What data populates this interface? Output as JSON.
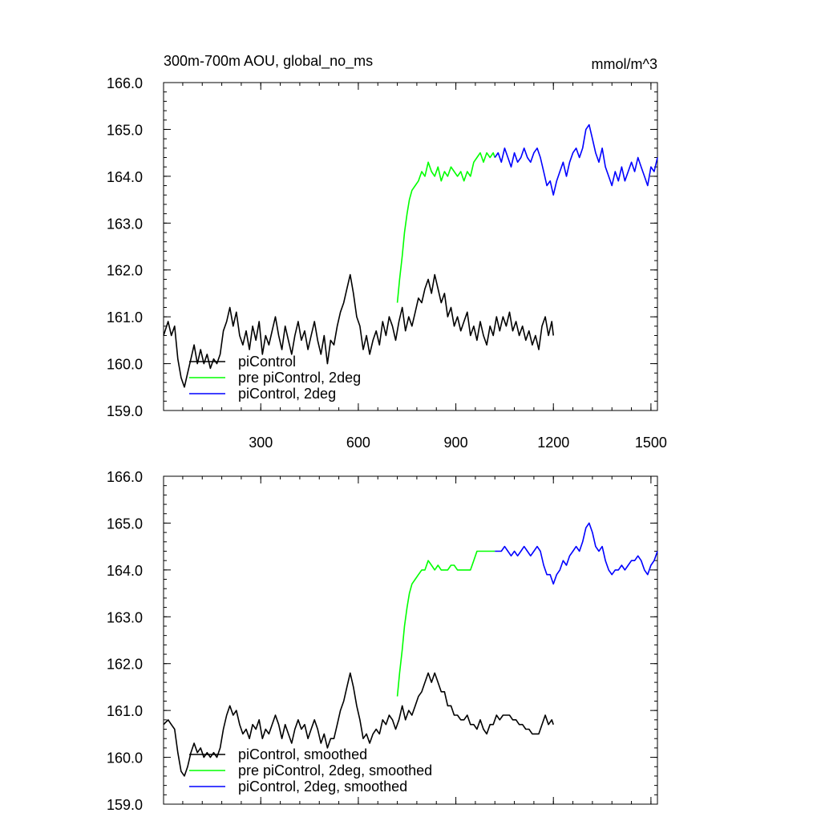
{
  "figure": {
    "title": "300m-700m AOU, global_no_ms",
    "units": "mmol/m^3"
  },
  "colors": {
    "piControl": "#000000",
    "pre_piControl_2deg": "#00ff00",
    "piControl_2deg": "#0000ff"
  },
  "chart_data": [
    {
      "type": "line",
      "title": "300m-700m AOU, global_no_ms",
      "units": "mmol/m^3",
      "xlim": [
        1,
        1520
      ],
      "ylim": [
        159.0,
        166.0
      ],
      "xticks": [
        300,
        600,
        900,
        1200,
        1500
      ],
      "xtick_labels": [
        "300",
        "600",
        "900",
        "1200",
        "1500"
      ],
      "yticks": [
        159,
        160,
        161,
        162,
        163,
        164,
        165,
        166
      ],
      "ytick_labels": [
        "159.0",
        "160.0",
        "161.0",
        "162.0",
        "163.0",
        "164.0",
        "165.0",
        "166.0"
      ],
      "legend": {
        "placement": "bottom-left",
        "entries": [
          "piControl",
          "pre piControl, 2deg",
          "piControl, 2deg"
        ]
      },
      "series": [
        {
          "name": "piControl",
          "color": "#000000",
          "x": [
            1,
            15,
            25,
            35,
            45,
            55,
            65,
            75,
            85,
            95,
            105,
            115,
            125,
            135,
            145,
            155,
            165,
            175,
            185,
            195,
            205,
            215,
            225,
            235,
            245,
            255,
            265,
            275,
            285,
            295,
            305,
            315,
            325,
            335,
            345,
            355,
            365,
            375,
            385,
            395,
            405,
            415,
            425,
            435,
            445,
            455,
            465,
            475,
            485,
            495,
            505,
            515,
            525,
            535,
            545,
            555,
            565,
            575,
            585,
            595,
            605,
            615,
            625,
            635,
            645,
            655,
            665,
            675,
            685,
            695,
            705,
            715,
            725,
            735,
            745,
            755,
            765,
            775,
            785,
            795,
            805,
            815,
            825,
            835,
            845,
            855,
            865,
            875,
            885,
            895,
            905,
            915,
            925,
            935,
            945,
            955,
            965,
            975,
            985,
            995,
            1005,
            1015,
            1025,
            1035,
            1045,
            1055,
            1065,
            1075,
            1085,
            1095,
            1105,
            1115,
            1125,
            1135,
            1145,
            1155,
            1165,
            1175,
            1185,
            1195,
            1200
          ],
          "y": [
            160.6,
            160.9,
            160.6,
            160.8,
            160.1,
            159.7,
            159.5,
            159.8,
            160.1,
            160.4,
            160.0,
            160.3,
            160.0,
            160.2,
            159.9,
            160.1,
            160.0,
            160.2,
            160.7,
            160.9,
            161.2,
            160.8,
            161.1,
            160.6,
            160.4,
            160.7,
            160.3,
            160.8,
            160.5,
            160.9,
            160.2,
            160.6,
            160.4,
            160.7,
            161.0,
            160.6,
            160.3,
            160.8,
            160.5,
            160.2,
            160.6,
            160.9,
            160.5,
            160.7,
            160.3,
            160.6,
            160.9,
            160.5,
            160.2,
            160.6,
            160.0,
            160.5,
            160.4,
            160.8,
            161.1,
            161.3,
            161.6,
            161.9,
            161.5,
            161.0,
            160.8,
            160.3,
            160.6,
            160.2,
            160.5,
            160.7,
            160.4,
            160.9,
            160.6,
            161.0,
            160.8,
            160.5,
            160.9,
            161.2,
            160.7,
            161.0,
            160.8,
            161.1,
            161.4,
            161.3,
            161.6,
            161.8,
            161.5,
            161.9,
            161.6,
            161.3,
            161.5,
            161.0,
            161.2,
            160.8,
            161.0,
            160.7,
            160.9,
            161.1,
            160.6,
            160.8,
            160.5,
            160.9,
            160.6,
            160.4,
            160.8,
            160.6,
            161.0,
            160.7,
            161.0,
            160.8,
            161.1,
            160.7,
            160.9,
            160.6,
            160.8,
            160.5,
            160.7,
            160.4,
            160.6,
            160.3,
            160.8,
            161.0,
            160.6,
            160.9,
            160.6
          ]
        },
        {
          "name": "pre piControl, 2deg",
          "color": "#00ff00",
          "x": [
            720,
            727,
            735,
            742,
            750,
            757,
            765,
            775,
            785,
            795,
            805,
            815,
            825,
            835,
            845,
            855,
            865,
            875,
            885,
            895,
            905,
            915,
            925,
            935,
            945,
            955,
            965,
            975,
            985,
            995,
            1005,
            1015,
            1020
          ],
          "y": [
            161.3,
            161.8,
            162.3,
            162.8,
            163.2,
            163.5,
            163.7,
            163.8,
            163.9,
            164.1,
            164.0,
            164.3,
            164.1,
            164.0,
            164.2,
            163.9,
            164.1,
            164.0,
            164.2,
            164.1,
            164.0,
            164.1,
            163.9,
            164.1,
            164.0,
            164.3,
            164.4,
            164.5,
            164.3,
            164.5,
            164.4,
            164.5,
            164.4
          ]
        },
        {
          "name": "piControl, 2deg",
          "color": "#0000ff",
          "x": [
            1020,
            1030,
            1040,
            1050,
            1060,
            1070,
            1080,
            1090,
            1100,
            1110,
            1120,
            1130,
            1140,
            1150,
            1160,
            1170,
            1180,
            1190,
            1200,
            1210,
            1220,
            1230,
            1240,
            1250,
            1260,
            1270,
            1280,
            1290,
            1300,
            1310,
            1320,
            1330,
            1340,
            1350,
            1360,
            1370,
            1380,
            1390,
            1400,
            1410,
            1420,
            1430,
            1440,
            1450,
            1460,
            1470,
            1480,
            1490,
            1500,
            1510,
            1520
          ],
          "y": [
            164.4,
            164.5,
            164.3,
            164.6,
            164.4,
            164.2,
            164.5,
            164.3,
            164.4,
            164.6,
            164.4,
            164.3,
            164.5,
            164.6,
            164.4,
            164.1,
            163.8,
            163.9,
            163.6,
            163.9,
            164.1,
            164.3,
            164.0,
            164.3,
            164.5,
            164.6,
            164.4,
            164.6,
            165.0,
            165.1,
            164.8,
            164.5,
            164.3,
            164.6,
            164.2,
            164.0,
            163.8,
            164.1,
            163.9,
            164.2,
            163.9,
            164.1,
            164.3,
            164.1,
            164.4,
            164.2,
            164.0,
            163.8,
            164.2,
            164.1,
            164.4
          ]
        }
      ]
    },
    {
      "type": "line",
      "title": "",
      "xlim": [
        1,
        1520
      ],
      "ylim": [
        159.0,
        166.0
      ],
      "xticks": [
        300,
        600,
        900,
        1200,
        1500
      ],
      "xtick_labels": [],
      "yticks": [
        159,
        160,
        161,
        162,
        163,
        164,
        165,
        166
      ],
      "ytick_labels": [
        "159.0",
        "160.0",
        "161.0",
        "162.0",
        "163.0",
        "164.0",
        "165.0",
        "166.0"
      ],
      "legend": {
        "placement": "bottom-left",
        "entries": [
          "piControl, smoothed",
          "pre piControl, 2deg, smoothed",
          "piControl, 2deg, smoothed"
        ]
      },
      "series": [
        {
          "name": "piControl, smoothed",
          "color": "#000000",
          "x": [
            1,
            15,
            25,
            35,
            45,
            55,
            65,
            75,
            85,
            95,
            105,
            115,
            125,
            135,
            145,
            155,
            165,
            175,
            185,
            195,
            205,
            215,
            225,
            235,
            245,
            255,
            265,
            275,
            285,
            295,
            305,
            315,
            325,
            335,
            345,
            355,
            365,
            375,
            385,
            395,
            405,
            415,
            425,
            435,
            445,
            455,
            465,
            475,
            485,
            495,
            505,
            515,
            525,
            535,
            545,
            555,
            565,
            575,
            585,
            595,
            605,
            615,
            625,
            635,
            645,
            655,
            665,
            675,
            685,
            695,
            705,
            715,
            725,
            735,
            745,
            755,
            765,
            775,
            785,
            795,
            805,
            815,
            825,
            835,
            845,
            855,
            865,
            875,
            885,
            895,
            905,
            915,
            925,
            935,
            945,
            955,
            965,
            975,
            985,
            995,
            1005,
            1015,
            1025,
            1035,
            1045,
            1055,
            1065,
            1075,
            1085,
            1095,
            1105,
            1115,
            1125,
            1135,
            1145,
            1155,
            1165,
            1175,
            1185,
            1195,
            1200
          ],
          "y": [
            160.7,
            160.8,
            160.7,
            160.6,
            160.1,
            159.7,
            159.6,
            159.8,
            160.1,
            160.3,
            160.1,
            160.2,
            160.0,
            160.1,
            160.0,
            160.1,
            160.0,
            160.2,
            160.6,
            160.9,
            161.1,
            160.9,
            161.0,
            160.7,
            160.5,
            160.6,
            160.4,
            160.7,
            160.6,
            160.8,
            160.4,
            160.6,
            160.5,
            160.7,
            160.9,
            160.7,
            160.4,
            160.7,
            160.5,
            160.3,
            160.6,
            160.8,
            160.6,
            160.7,
            160.4,
            160.6,
            160.8,
            160.6,
            160.3,
            160.5,
            160.2,
            160.4,
            160.4,
            160.7,
            161.0,
            161.2,
            161.5,
            161.8,
            161.5,
            161.1,
            160.8,
            160.4,
            160.5,
            160.3,
            160.5,
            160.6,
            160.5,
            160.8,
            160.7,
            160.9,
            160.8,
            160.6,
            160.8,
            161.1,
            160.8,
            161.0,
            160.9,
            161.1,
            161.3,
            161.4,
            161.6,
            161.8,
            161.6,
            161.8,
            161.6,
            161.4,
            161.4,
            161.1,
            161.1,
            160.9,
            160.9,
            160.8,
            160.8,
            160.9,
            160.7,
            160.7,
            160.6,
            160.8,
            160.6,
            160.5,
            160.7,
            160.7,
            160.9,
            160.8,
            160.9,
            160.9,
            160.9,
            160.8,
            160.8,
            160.7,
            160.7,
            160.6,
            160.6,
            160.5,
            160.5,
            160.5,
            160.7,
            160.9,
            160.7,
            160.8,
            160.7
          ]
        },
        {
          "name": "pre piControl, 2deg, smoothed",
          "color": "#00ff00",
          "x": [
            720,
            727,
            735,
            742,
            750,
            757,
            765,
            775,
            785,
            795,
            805,
            815,
            825,
            835,
            845,
            855,
            865,
            875,
            885,
            895,
            905,
            915,
            925,
            935,
            945,
            955,
            965,
            975,
            985,
            995,
            1005,
            1015,
            1020
          ],
          "y": [
            161.3,
            161.8,
            162.3,
            162.8,
            163.2,
            163.5,
            163.7,
            163.8,
            163.9,
            164.0,
            164.0,
            164.2,
            164.1,
            164.0,
            164.1,
            164.0,
            164.0,
            164.0,
            164.1,
            164.1,
            164.0,
            164.0,
            164.0,
            164.0,
            164.0,
            164.2,
            164.4,
            164.4,
            164.4,
            164.4,
            164.4,
            164.4,
            164.4
          ]
        },
        {
          "name": "piControl, 2deg, smoothed",
          "color": "#0000ff",
          "x": [
            1020,
            1030,
            1040,
            1050,
            1060,
            1070,
            1080,
            1090,
            1100,
            1110,
            1120,
            1130,
            1140,
            1150,
            1160,
            1170,
            1180,
            1190,
            1200,
            1210,
            1220,
            1230,
            1240,
            1250,
            1260,
            1270,
            1280,
            1290,
            1300,
            1310,
            1320,
            1330,
            1340,
            1350,
            1360,
            1370,
            1380,
            1390,
            1400,
            1410,
            1420,
            1430,
            1440,
            1450,
            1460,
            1470,
            1480,
            1490,
            1500,
            1510,
            1520
          ],
          "y": [
            164.4,
            164.4,
            164.4,
            164.5,
            164.4,
            164.3,
            164.4,
            164.3,
            164.4,
            164.5,
            164.4,
            164.3,
            164.4,
            164.5,
            164.4,
            164.1,
            163.9,
            163.9,
            163.7,
            163.9,
            164.0,
            164.2,
            164.1,
            164.3,
            164.4,
            164.5,
            164.4,
            164.6,
            164.9,
            165.0,
            164.8,
            164.5,
            164.4,
            164.5,
            164.2,
            164.0,
            163.9,
            164.0,
            164.0,
            164.1,
            164.0,
            164.1,
            164.2,
            164.2,
            164.3,
            164.2,
            164.0,
            163.9,
            164.1,
            164.2,
            164.4
          ]
        }
      ]
    }
  ]
}
